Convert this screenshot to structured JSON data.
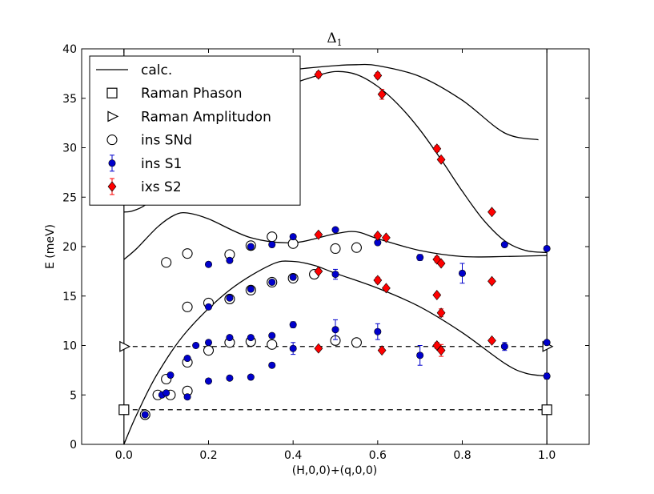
{
  "chart_data": {
    "type": "scatter",
    "title": "Δ",
    "title_subscript": "1",
    "xlabel": "(H,0,0)+(q,0,0)",
    "ylabel": "E (meV)",
    "xlim": [
      -0.1,
      1.1
    ],
    "ylim": [
      0,
      40
    ],
    "x_ticks": [
      0.0,
      0.2,
      0.4,
      0.6,
      0.8,
      1.0
    ],
    "y_ticks": [
      0,
      5,
      10,
      15,
      20,
      25,
      30,
      35,
      40
    ],
    "x_tick_labels": [
      "0.0",
      "0.2",
      "0.4",
      "0.6",
      "0.8",
      "1.0"
    ],
    "y_tick_labels": [
      "0",
      "5",
      "10",
      "15",
      "20",
      "25",
      "30",
      "35",
      "40"
    ],
    "grid": false,
    "legend_position": "top-left",
    "vertical_lines": [
      0.0,
      1.0
    ],
    "dashed_lines": [
      3.5,
      9.9
    ],
    "series": [
      {
        "name": "calc.",
        "kind": "line",
        "color": "#000000",
        "curves": [
          {
            "x": [
              0.0,
              0.03,
              0.08,
              0.15,
              0.25,
              0.35,
              0.4,
              0.45,
              0.5,
              0.6,
              0.7,
              0.8,
              0.9,
              0.95,
              1.0
            ],
            "y": [
              0.0,
              3.0,
              7.2,
              11.5,
              15.6,
              18.2,
              18.5,
              18.1,
              17.3,
              15.8,
              13.9,
              11.3,
              8.2,
              7.2,
              6.9
            ]
          },
          {
            "x": [
              0.0,
              0.03,
              0.08,
              0.12,
              0.15,
              0.2,
              0.3,
              0.4,
              0.5,
              0.55,
              0.6,
              0.7,
              0.8,
              0.9,
              1.0
            ],
            "y": [
              18.7,
              19.8,
              22.0,
              23.2,
              23.4,
              22.8,
              20.9,
              20.4,
              21.3,
              21.5,
              20.8,
              19.6,
              19.0,
              19.0,
              19.1
            ]
          },
          {
            "x": [
              0.0,
              0.02,
              0.05,
              0.08,
              0.1,
              0.13,
              0.17,
              0.2,
              0.25,
              0.3,
              0.35,
              0.4,
              0.45,
              0.5,
              0.55,
              0.6,
              0.65,
              0.7,
              0.75,
              0.8,
              0.85,
              0.9,
              0.95,
              1.0
            ],
            "y": [
              23.5,
              23.6,
              24.2,
              25.6,
              27.0,
              29.0,
              31.0,
              32.3,
              33.9,
              35.0,
              35.8,
              36.5,
              37.2,
              37.7,
              37.4,
              36.2,
              34.3,
              31.8,
              28.8,
              25.6,
              22.7,
              20.6,
              19.6,
              19.4
            ]
          },
          {
            "x": [
              0.0,
              0.1,
              0.2,
              0.3,
              0.4,
              0.5,
              0.55,
              0.6,
              0.7,
              0.8,
              0.9,
              0.98
            ],
            "y": [
              35.0,
              35.9,
              36.6,
              37.3,
              37.9,
              38.3,
              38.4,
              38.3,
              37.2,
              34.8,
              31.5,
              30.8
            ]
          }
        ]
      },
      {
        "name": "Raman Phason",
        "kind": "marker",
        "marker": "square",
        "color": "#000000",
        "x": [
          0.0,
          1.0
        ],
        "y": [
          3.5,
          3.5
        ]
      },
      {
        "name": "Raman Amplitudon",
        "kind": "marker",
        "marker": "triangle-right",
        "color": "#000000",
        "x": [
          0.0,
          1.0
        ],
        "y": [
          9.9,
          9.9
        ]
      },
      {
        "name": "ins SNd",
        "kind": "marker",
        "marker": "open-circle",
        "color": "#000000",
        "x": [
          0.05,
          0.08,
          0.1,
          0.11,
          0.1,
          0.15,
          0.15,
          0.15,
          0.15,
          0.2,
          0.2,
          0.25,
          0.25,
          0.25,
          0.3,
          0.3,
          0.3,
          0.35,
          0.35,
          0.35,
          0.4,
          0.4,
          0.45,
          0.5,
          0.5,
          0.55,
          0.55
        ],
        "y": [
          3.0,
          5.0,
          6.6,
          5.0,
          18.4,
          5.4,
          8.3,
          13.9,
          19.3,
          9.5,
          14.3,
          10.3,
          14.7,
          19.2,
          10.4,
          15.6,
          20.1,
          10.1,
          16.4,
          21.0,
          16.8,
          20.3,
          17.2,
          10.5,
          19.8,
          10.3,
          19.9
        ]
      },
      {
        "name": "ins S1",
        "kind": "marker",
        "marker": "filled-circle",
        "color": "#0000cc",
        "x": [
          0.05,
          0.09,
          0.1,
          0.11,
          0.15,
          0.15,
          0.17,
          0.2,
          0.2,
          0.2,
          0.2,
          0.25,
          0.25,
          0.25,
          0.25,
          0.3,
          0.3,
          0.3,
          0.3,
          0.35,
          0.35,
          0.35,
          0.35,
          0.4,
          0.4,
          0.4,
          0.4,
          0.5,
          0.5,
          0.5,
          0.6,
          0.6,
          0.7,
          0.7,
          0.8,
          0.9,
          0.9,
          1.0,
          1.0,
          1.0
        ],
        "y": [
          3.0,
          5.0,
          5.2,
          7.0,
          4.8,
          8.7,
          10.0,
          6.4,
          10.3,
          13.9,
          18.2,
          6.7,
          10.8,
          14.8,
          18.6,
          6.8,
          10.8,
          15.7,
          20.0,
          8.0,
          11.0,
          16.4,
          20.2,
          9.7,
          12.1,
          16.9,
          21.0,
          11.6,
          17.2,
          21.7,
          11.4,
          20.4,
          9.0,
          18.9,
          17.3,
          9.9,
          20.2,
          6.9,
          10.3,
          19.8
        ],
        "yerr": [
          0,
          0,
          0,
          0,
          0,
          0,
          0,
          0,
          0,
          0,
          0,
          0,
          0,
          0,
          0,
          0,
          0,
          0,
          0,
          0,
          0,
          0,
          0,
          0.6,
          0.3,
          0,
          0,
          1.0,
          0.5,
          0,
          0.8,
          0,
          1.0,
          0.3,
          1.0,
          0.4,
          0,
          0.3,
          0,
          0
        ]
      },
      {
        "name": "ixs S2",
        "kind": "marker",
        "marker": "diamond",
        "color": "#ff0000",
        "x": [
          0.46,
          0.46,
          0.46,
          0.46,
          0.6,
          0.6,
          0.6,
          0.61,
          0.61,
          0.62,
          0.62,
          0.74,
          0.74,
          0.74,
          0.74,
          0.75,
          0.75,
          0.75,
          0.75,
          0.87,
          0.87,
          0.87
        ],
        "y": [
          37.4,
          21.2,
          17.5,
          9.7,
          37.3,
          21.1,
          16.6,
          9.5,
          35.4,
          20.9,
          15.8,
          29.9,
          18.7,
          15.1,
          10.0,
          28.8,
          18.3,
          13.3,
          9.5,
          23.5,
          16.5,
          10.5
        ],
        "yerr": [
          0.3,
          0,
          0,
          0,
          0.3,
          0,
          0.3,
          0,
          0.5,
          0,
          0,
          0.3,
          0.3,
          0,
          0.3,
          0,
          0,
          0.4,
          0.6,
          0,
          0,
          0
        ]
      }
    ]
  }
}
